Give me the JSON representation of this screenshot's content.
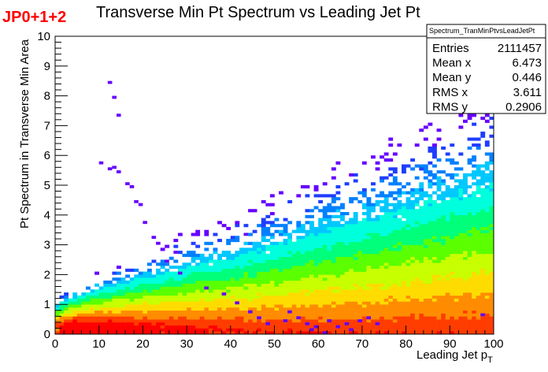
{
  "trigger_label": "JP0+1+2",
  "stats_box": {
    "name": "Spectrum_TranMinPtvsLeadJetPt",
    "rows": [
      {
        "label": "Entries",
        "value": "2111457"
      },
      {
        "label": "Mean x",
        "value": "6.473"
      },
      {
        "label": "Mean y",
        "value": "0.446"
      },
      {
        "label": "RMS x",
        "value": "3.611"
      },
      {
        "label": "RMS y",
        "value": "0.2906"
      }
    ]
  },
  "chart_data": {
    "type": "heatmap",
    "title": "Transverse Min Pt Spectrum vs Leading Jet Pt",
    "xlabel": "Leading Jet p",
    "xlabel_subscript": "T",
    "ylabel": "Pt Spectrum in Transverse Min Area",
    "xlim": [
      0,
      100
    ],
    "ylim": [
      0,
      10
    ],
    "xbins": 100,
    "ybins": 100,
    "xticks": [
      "0",
      "10",
      "20",
      "30",
      "40",
      "50",
      "60",
      "70",
      "80",
      "90",
      "100"
    ],
    "yticks": [
      "0",
      "1",
      "2",
      "3",
      "4",
      "5",
      "6",
      "7",
      "8",
      "9",
      "10"
    ],
    "colormap": [
      "#6600ff",
      "#1f3dff",
      "#0080ff",
      "#00c8ff",
      "#00ffdc",
      "#00ff7a",
      "#5aff00",
      "#c8ff00",
      "#ffdc00",
      "#ff8c00",
      "#ff3c00",
      "#ff0000"
    ],
    "density_model": {
      "peak_x": 6.5,
      "peak_y": 0.35,
      "mean_x": 6.473,
      "mean_y": 0.446,
      "rms_x": 3.611,
      "rms_y": 0.2906,
      "entries": 2111457
    },
    "outlier_points": [
      [
        12.5,
        8.45
      ],
      [
        13.5,
        7.95
      ],
      [
        14.5,
        7.35
      ],
      [
        10.5,
        5.75
      ],
      [
        12.5,
        5.55
      ],
      [
        13.5,
        5.6
      ],
      [
        14.5,
        5.45
      ],
      [
        16.5,
        5.05
      ],
      [
        17.5,
        4.95
      ],
      [
        19.5,
        4.35
      ],
      [
        18.5,
        4.45
      ],
      [
        20.5,
        3.75
      ],
      [
        22.5,
        3.25
      ],
      [
        23.5,
        3.05
      ],
      [
        25.5,
        2.45
      ],
      [
        27.5,
        2.75
      ],
      [
        28.5,
        2.05
      ],
      [
        43.5,
        3.35
      ],
      [
        34.5,
        1.55
      ],
      [
        38.5,
        1.35
      ],
      [
        41.5,
        1.05
      ],
      [
        44.5,
        0.75
      ],
      [
        46.5,
        0.55
      ],
      [
        48.5,
        0.35
      ],
      [
        52.5,
        0.45
      ],
      [
        53.5,
        0.75
      ],
      [
        55.5,
        0.55
      ],
      [
        57.5,
        0.35
      ],
      [
        59.5,
        0.25
      ],
      [
        62.5,
        0.45
      ],
      [
        64.5,
        0.25
      ],
      [
        66.5,
        0.35
      ],
      [
        69.5,
        0.45
      ],
      [
        71.5,
        0.55
      ],
      [
        73.5,
        0.35
      ],
      [
        58.5,
        0.15
      ],
      [
        61.5,
        0.05
      ],
      [
        67.5,
        0.15
      ],
      [
        97.5,
        0.65
      ]
    ]
  }
}
